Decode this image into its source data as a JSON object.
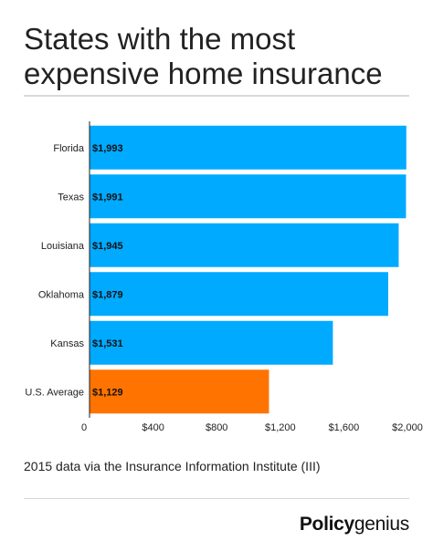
{
  "title": "States with the most expensive home insurance",
  "footnote": "2015 data via the Insurance Information Institute (III)",
  "brand": {
    "bold": "Policy",
    "light": "genius"
  },
  "colors": {
    "bar": "#00aaff",
    "highlight": "#ff7300",
    "axis": "#222222",
    "grid": "#d9d9d9"
  },
  "chart_data": {
    "type": "bar",
    "orientation": "horizontal",
    "categories": [
      "Florida",
      "Texas",
      "Louisiana",
      "Oklahoma",
      "Kansas",
      "U.S. Average"
    ],
    "values": [
      1993,
      1991,
      1945,
      1879,
      1531,
      1129
    ],
    "data_labels": [
      "$1,993",
      "$1,991",
      "$1,945",
      "$1,879",
      "$1,531",
      "$1,129"
    ],
    "highlight_index": 5,
    "xlim": [
      0,
      2000
    ],
    "x_ticks": [
      0,
      400,
      800,
      1200,
      1600,
      2000
    ],
    "x_tick_labels": [
      "0",
      "$400",
      "$800",
      "$1,200",
      "$1,600",
      "$2,000"
    ],
    "grid": false,
    "legend": "none"
  }
}
